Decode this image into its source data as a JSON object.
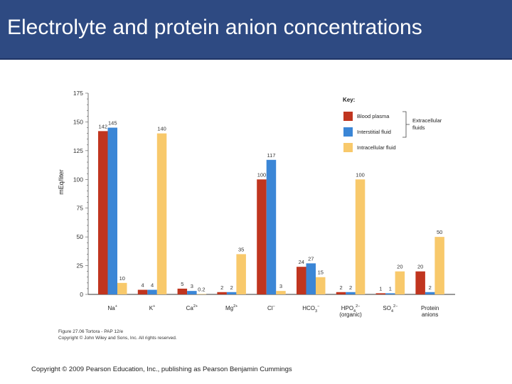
{
  "page": {
    "title": "Electrolyte and protein anion concentrations",
    "figure_credit_line1": "Figure 27.06  Tortora - PAP 12/e",
    "figure_credit_line2": "Copyright © John Wiley and Sons, Inc. All rights reserved.",
    "copyright": "Copyright © 2009 Pearson Education, Inc., publishing as Pearson Benjamin Cummings",
    "colors": {
      "title_bar": "#2e4a82",
      "title_text": "#ffffff"
    }
  },
  "chart_data": {
    "type": "bar",
    "ylabel": "mEq/liter",
    "ylim": [
      0,
      175
    ],
    "yticks": [
      0,
      25,
      50,
      75,
      100,
      125,
      150,
      175
    ],
    "categories": [
      {
        "label": "Na",
        "sup": "+"
      },
      {
        "label": "K",
        "sup": "+"
      },
      {
        "label": "Ca",
        "sup": "2+"
      },
      {
        "label": "Mg",
        "sup": "2+"
      },
      {
        "label": "Cl",
        "sup": "−"
      },
      {
        "label": "HCO",
        "sub": "3",
        "sup": "−"
      },
      {
        "label": "HPO",
        "sub": "4",
        "sup": "2−",
        "line2": "(organic)"
      },
      {
        "label": "SO",
        "sub": "4",
        "sup": "2−"
      },
      {
        "label": "Protein",
        "line2": "anions"
      }
    ],
    "series": [
      {
        "name": "Blood plasma",
        "color": "#c0351f",
        "values": [
          142,
          4,
          5,
          2,
          100,
          24,
          2,
          1,
          20
        ],
        "labels": [
          "142",
          "4",
          "5",
          "2",
          "100",
          "24",
          "2",
          "1",
          "20"
        ]
      },
      {
        "name": "Interstitial fluid",
        "color": "#3b86d6",
        "values": [
          145,
          4,
          3,
          2,
          117,
          27,
          2,
          1,
          2
        ],
        "labels": [
          "145",
          "4",
          "3",
          "2",
          "117",
          "27",
          "2",
          "1",
          "2"
        ]
      },
      {
        "name": "Intracellular fluid",
        "color": "#f8c96b",
        "values": [
          10,
          140,
          0.2,
          35,
          3,
          15,
          100,
          20,
          50
        ],
        "labels": [
          "10",
          "140",
          "0.2",
          "35",
          "3",
          "15",
          "100",
          "20",
          "50"
        ]
      }
    ],
    "legend": {
      "title": "Key:",
      "group_label_line1": "Extracellular",
      "group_label_line2": "fluids",
      "placement": "top-right"
    }
  }
}
